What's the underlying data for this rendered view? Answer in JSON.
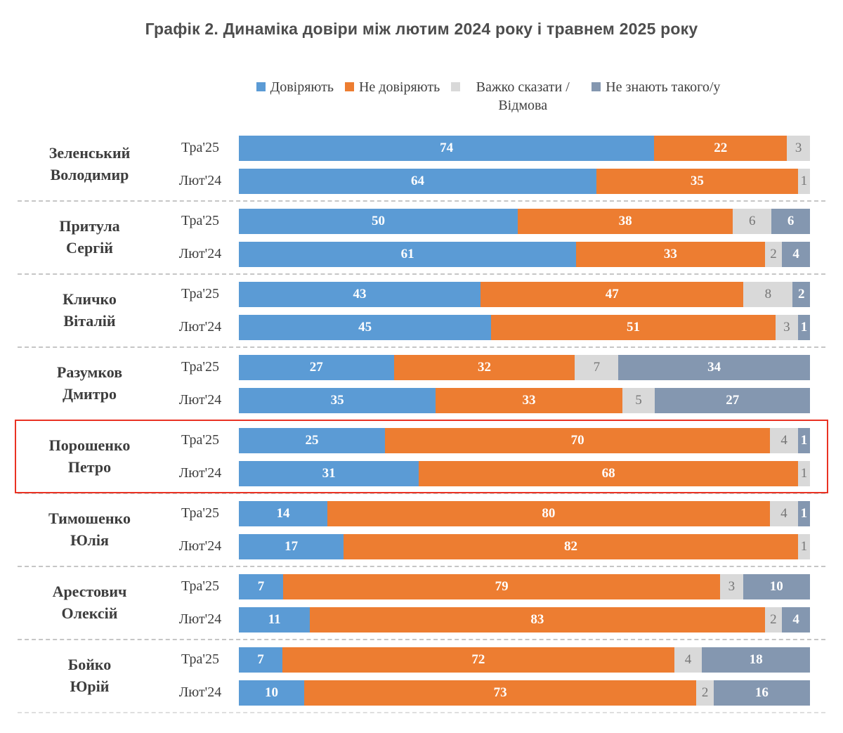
{
  "title": "Графік 2. Динаміка довіри між лютим 2024 року і травнем 2025 року",
  "legend": [
    {
      "key": "trust",
      "label": "Довіряють",
      "color": "#5B9BD5",
      "wrap": false
    },
    {
      "key": "distrust",
      "label": "Не довіряють",
      "color": "#ED7D31",
      "wrap": false
    },
    {
      "key": "hard-to-say",
      "label": "Важко сказати / Відмова",
      "color": "#D9D9D9",
      "wrap": true
    },
    {
      "key": "dont-know",
      "label": "Не знають такого/у",
      "color": "#8497B0",
      "wrap": false
    }
  ],
  "colors": {
    "trust": "#5B9BD5",
    "distrust": "#ED7D31",
    "hard_to_say": "#D9D9D9",
    "dont_know": "#8497B0",
    "highlight_box": "#E93223",
    "title_text": "#4D4D4D",
    "gray_value_label": "#767676"
  },
  "chart_data": {
    "type": "bar",
    "orientation": "horizontal",
    "stacked": true,
    "percent_scale": true,
    "xlim": [
      0,
      100
    ],
    "title": "Графік 2. Динаміка довіри між лютим 2024 року і травнем 2025 року",
    "xlabel": "",
    "ylabel": "",
    "series_names": [
      "Довіряють",
      "Не довіряють",
      "Важко сказати / Відмова",
      "Не знають такого/у"
    ],
    "series_keys": [
      "trust",
      "distrust",
      "hard-to-say",
      "dont-know"
    ],
    "groups": [
      {
        "name": "Зеленський Володимир",
        "name_lines": [
          "Зеленський",
          "Володимир"
        ],
        "highlighted": false,
        "rows": [
          {
            "period": "Тра'25",
            "values": [
              74,
              22,
              3,
              0
            ]
          },
          {
            "period": "Лют'24",
            "values": [
              64,
              35,
              1,
              0
            ]
          }
        ]
      },
      {
        "name": "Притула Сергій",
        "name_lines": [
          "Притула",
          "Сергій"
        ],
        "highlighted": false,
        "rows": [
          {
            "period": "Тра'25",
            "values": [
              50,
              38,
              6,
              6
            ]
          },
          {
            "period": "Лют'24",
            "values": [
              61,
              33,
              2,
              4
            ]
          }
        ]
      },
      {
        "name": "Кличко Віталій",
        "name_lines": [
          "Кличко",
          "Віталій"
        ],
        "highlighted": false,
        "rows": [
          {
            "period": "Тра'25",
            "values": [
              43,
              47,
              8,
              2
            ]
          },
          {
            "period": "Лют'24",
            "values": [
              45,
              51,
              3,
              1
            ]
          }
        ]
      },
      {
        "name": "Разумков Дмитро",
        "name_lines": [
          "Разумков",
          "Дмитро"
        ],
        "highlighted": false,
        "rows": [
          {
            "period": "Тра'25",
            "values": [
              27,
              32,
              7,
              34
            ]
          },
          {
            "period": "Лют'24",
            "values": [
              35,
              33,
              5,
              27
            ]
          }
        ]
      },
      {
        "name": "Порошенко Петро",
        "name_lines": [
          "Порошенко",
          "Петро"
        ],
        "highlighted": true,
        "rows": [
          {
            "period": "Тра'25",
            "values": [
              25,
              70,
              4,
              1
            ]
          },
          {
            "period": "Лют'24",
            "values": [
              31,
              68,
              1,
              0
            ]
          }
        ]
      },
      {
        "name": "Тимошенко Юлія",
        "name_lines": [
          "Тимошенко",
          "Юлія"
        ],
        "highlighted": false,
        "rows": [
          {
            "period": "Тра'25",
            "values": [
              14,
              80,
              4,
              1
            ]
          },
          {
            "period": "Лют'24",
            "values": [
              17,
              82,
              1,
              0
            ]
          }
        ]
      },
      {
        "name": "Арестович Олексій",
        "name_lines": [
          "Арестович",
          "Олексій"
        ],
        "highlighted": false,
        "rows": [
          {
            "period": "Тра'25",
            "values": [
              7,
              79,
              3,
              10
            ]
          },
          {
            "period": "Лют'24",
            "values": [
              11,
              83,
              2,
              4
            ]
          }
        ]
      },
      {
        "name": "Бойко Юрій",
        "name_lines": [
          "Бойко",
          "Юрій"
        ],
        "highlighted": false,
        "rows": [
          {
            "period": "Тра'25",
            "values": [
              7,
              72,
              4,
              18
            ]
          },
          {
            "period": "Лют'24",
            "values": [
              10,
              73,
              2,
              16
            ]
          }
        ]
      }
    ]
  }
}
